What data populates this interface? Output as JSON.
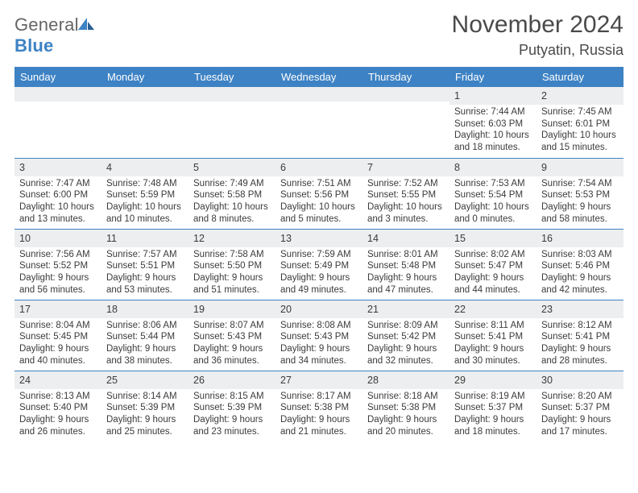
{
  "brand": {
    "prefix": "General",
    "suffix": "Blue"
  },
  "header": {
    "month_title": "November 2024",
    "location": "Putyatin, Russia"
  },
  "style": {
    "header_bg": "#3d82c4",
    "header_text": "#ffffff",
    "daynum_bg": "#eceeef",
    "border_color": "#3d82c4",
    "text_color": "#3b3b3b",
    "page_bg": "#ffffff",
    "month_title_fontsize": 30,
    "location_fontsize": 18,
    "dow_fontsize": 13,
    "body_fontsize": 11.5
  },
  "dow": [
    "Sunday",
    "Monday",
    "Tuesday",
    "Wednesday",
    "Thursday",
    "Friday",
    "Saturday"
  ],
  "weeks": [
    [
      null,
      null,
      null,
      null,
      null,
      {
        "n": "1",
        "sr": "Sunrise: 7:44 AM",
        "ss": "Sunset: 6:03 PM",
        "dl": "Daylight: 10 hours and 18 minutes."
      },
      {
        "n": "2",
        "sr": "Sunrise: 7:45 AM",
        "ss": "Sunset: 6:01 PM",
        "dl": "Daylight: 10 hours and 15 minutes."
      }
    ],
    [
      {
        "n": "3",
        "sr": "Sunrise: 7:47 AM",
        "ss": "Sunset: 6:00 PM",
        "dl": "Daylight: 10 hours and 13 minutes."
      },
      {
        "n": "4",
        "sr": "Sunrise: 7:48 AM",
        "ss": "Sunset: 5:59 PM",
        "dl": "Daylight: 10 hours and 10 minutes."
      },
      {
        "n": "5",
        "sr": "Sunrise: 7:49 AM",
        "ss": "Sunset: 5:58 PM",
        "dl": "Daylight: 10 hours and 8 minutes."
      },
      {
        "n": "6",
        "sr": "Sunrise: 7:51 AM",
        "ss": "Sunset: 5:56 PM",
        "dl": "Daylight: 10 hours and 5 minutes."
      },
      {
        "n": "7",
        "sr": "Sunrise: 7:52 AM",
        "ss": "Sunset: 5:55 PM",
        "dl": "Daylight: 10 hours and 3 minutes."
      },
      {
        "n": "8",
        "sr": "Sunrise: 7:53 AM",
        "ss": "Sunset: 5:54 PM",
        "dl": "Daylight: 10 hours and 0 minutes."
      },
      {
        "n": "9",
        "sr": "Sunrise: 7:54 AM",
        "ss": "Sunset: 5:53 PM",
        "dl": "Daylight: 9 hours and 58 minutes."
      }
    ],
    [
      {
        "n": "10",
        "sr": "Sunrise: 7:56 AM",
        "ss": "Sunset: 5:52 PM",
        "dl": "Daylight: 9 hours and 56 minutes."
      },
      {
        "n": "11",
        "sr": "Sunrise: 7:57 AM",
        "ss": "Sunset: 5:51 PM",
        "dl": "Daylight: 9 hours and 53 minutes."
      },
      {
        "n": "12",
        "sr": "Sunrise: 7:58 AM",
        "ss": "Sunset: 5:50 PM",
        "dl": "Daylight: 9 hours and 51 minutes."
      },
      {
        "n": "13",
        "sr": "Sunrise: 7:59 AM",
        "ss": "Sunset: 5:49 PM",
        "dl": "Daylight: 9 hours and 49 minutes."
      },
      {
        "n": "14",
        "sr": "Sunrise: 8:01 AM",
        "ss": "Sunset: 5:48 PM",
        "dl": "Daylight: 9 hours and 47 minutes."
      },
      {
        "n": "15",
        "sr": "Sunrise: 8:02 AM",
        "ss": "Sunset: 5:47 PM",
        "dl": "Daylight: 9 hours and 44 minutes."
      },
      {
        "n": "16",
        "sr": "Sunrise: 8:03 AM",
        "ss": "Sunset: 5:46 PM",
        "dl": "Daylight: 9 hours and 42 minutes."
      }
    ],
    [
      {
        "n": "17",
        "sr": "Sunrise: 8:04 AM",
        "ss": "Sunset: 5:45 PM",
        "dl": "Daylight: 9 hours and 40 minutes."
      },
      {
        "n": "18",
        "sr": "Sunrise: 8:06 AM",
        "ss": "Sunset: 5:44 PM",
        "dl": "Daylight: 9 hours and 38 minutes."
      },
      {
        "n": "19",
        "sr": "Sunrise: 8:07 AM",
        "ss": "Sunset: 5:43 PM",
        "dl": "Daylight: 9 hours and 36 minutes."
      },
      {
        "n": "20",
        "sr": "Sunrise: 8:08 AM",
        "ss": "Sunset: 5:43 PM",
        "dl": "Daylight: 9 hours and 34 minutes."
      },
      {
        "n": "21",
        "sr": "Sunrise: 8:09 AM",
        "ss": "Sunset: 5:42 PM",
        "dl": "Daylight: 9 hours and 32 minutes."
      },
      {
        "n": "22",
        "sr": "Sunrise: 8:11 AM",
        "ss": "Sunset: 5:41 PM",
        "dl": "Daylight: 9 hours and 30 minutes."
      },
      {
        "n": "23",
        "sr": "Sunrise: 8:12 AM",
        "ss": "Sunset: 5:41 PM",
        "dl": "Daylight: 9 hours and 28 minutes."
      }
    ],
    [
      {
        "n": "24",
        "sr": "Sunrise: 8:13 AM",
        "ss": "Sunset: 5:40 PM",
        "dl": "Daylight: 9 hours and 26 minutes."
      },
      {
        "n": "25",
        "sr": "Sunrise: 8:14 AM",
        "ss": "Sunset: 5:39 PM",
        "dl": "Daylight: 9 hours and 25 minutes."
      },
      {
        "n": "26",
        "sr": "Sunrise: 8:15 AM",
        "ss": "Sunset: 5:39 PM",
        "dl": "Daylight: 9 hours and 23 minutes."
      },
      {
        "n": "27",
        "sr": "Sunrise: 8:17 AM",
        "ss": "Sunset: 5:38 PM",
        "dl": "Daylight: 9 hours and 21 minutes."
      },
      {
        "n": "28",
        "sr": "Sunrise: 8:18 AM",
        "ss": "Sunset: 5:38 PM",
        "dl": "Daylight: 9 hours and 20 minutes."
      },
      {
        "n": "29",
        "sr": "Sunrise: 8:19 AM",
        "ss": "Sunset: 5:37 PM",
        "dl": "Daylight: 9 hours and 18 minutes."
      },
      {
        "n": "30",
        "sr": "Sunrise: 8:20 AM",
        "ss": "Sunset: 5:37 PM",
        "dl": "Daylight: 9 hours and 17 minutes."
      }
    ]
  ]
}
